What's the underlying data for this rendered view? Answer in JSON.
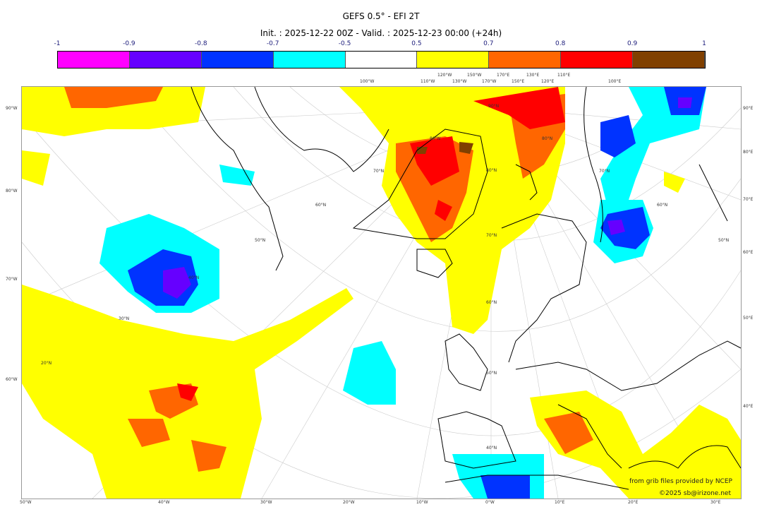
{
  "title": "GEFS 0.5° - EFI 2T",
  "subtitle": "Init. : 2025-12-22 00Z - Valid. : 2025-12-23 00:00 (+24h)",
  "colorbar": {
    "ticks": [
      "-1",
      "-0.9",
      "-0.8",
      "-0.7",
      "-0.5",
      "0.5",
      "0.7",
      "0.8",
      "0.9",
      "1"
    ],
    "colors": [
      "#ff00ff",
      "#6600ff",
      "#0033ff",
      "#00ffff",
      "#ffffff",
      "#ffff00",
      "#ff6600",
      "#ff0000",
      "#804000"
    ]
  },
  "axes": {
    "left": [
      "90°W",
      "80°W",
      "70°W",
      "60°W"
    ],
    "right": [
      "90°E",
      "80°E",
      "70°E",
      "60°E",
      "50°E",
      "40°E"
    ],
    "bottom": [
      "50°W",
      "40°W",
      "30°W",
      "20°W",
      "10°W",
      "0°W",
      "10°E",
      "20°E",
      "30°E"
    ],
    "top": [
      "100°W",
      "110°W",
      "120°W",
      "130°W",
      "150°W",
      "170°W",
      "170°E",
      "150°E",
      "130°E",
      "120°E",
      "110°E",
      "100°E"
    ]
  },
  "lat_labels": [
    "90°N",
    "80°N",
    "70°N",
    "60°N",
    "50°N",
    "40°N",
    "20°N",
    "30°N",
    "40°N",
    "50°N",
    "60°N",
    "70°N",
    "80°N",
    "80°N",
    "70°N",
    "60°N",
    "50°N"
  ],
  "footer": {
    "credit": "from grib files provided by NCEP",
    "copyright": "©2025 sb@irizone.net"
  }
}
